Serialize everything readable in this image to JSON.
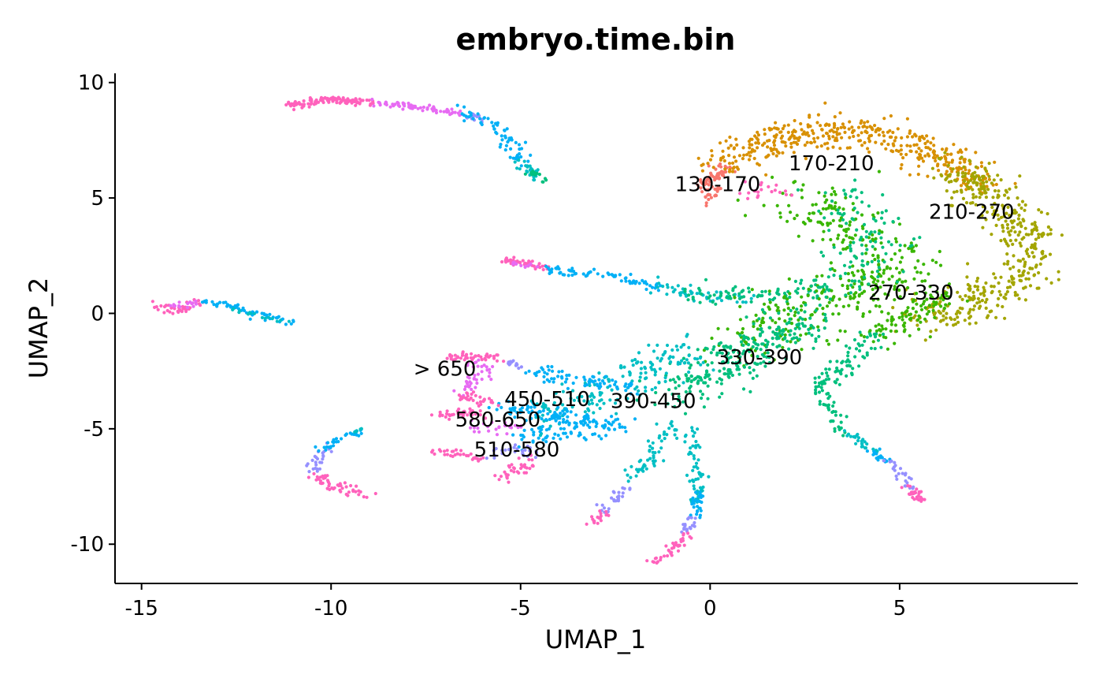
{
  "chart_data": {
    "type": "scatter",
    "title": "embryo.time.bin",
    "xlabel": "UMAP_1",
    "ylabel": "UMAP_2",
    "xlim": [
      -15.7,
      9.7
    ],
    "ylim": [
      -11.7,
      10.4
    ],
    "x_ticks": [
      -15,
      -10,
      -5,
      0,
      5
    ],
    "x_tick_labels": [
      "-15",
      "-10",
      "-5",
      "0",
      "5"
    ],
    "y_ticks": [
      -10,
      -5,
      0,
      5,
      10
    ],
    "y_tick_labels": [
      "-10",
      "-5",
      "0",
      "5",
      "10"
    ],
    "grid": false,
    "legend": "none",
    "series": [
      {
        "name": "130-170",
        "color": "#F8766D"
      },
      {
        "name": "170-210",
        "color": "#D89000"
      },
      {
        "name": "210-270",
        "color": "#A3A500"
      },
      {
        "name": "270-330",
        "color": "#39B600"
      },
      {
        "name": "330-390",
        "color": "#00BF7D"
      },
      {
        "name": "390-450",
        "color": "#00BFC4"
      },
      {
        "name": "450-510",
        "color": "#00B0F6"
      },
      {
        "name": "510-580",
        "color": "#9590FF"
      },
      {
        "name": "580-650",
        "color": "#E76BF3"
      },
      {
        "name": "> 650",
        "color": "#FF62BC"
      }
    ],
    "labels": [
      {
        "text": "130-170",
        "x": 0.2,
        "y": 5.6
      },
      {
        "text": "170-210",
        "x": 3.2,
        "y": 6.5
      },
      {
        "text": "210-270",
        "x": 6.9,
        "y": 4.4
      },
      {
        "text": "270-330",
        "x": 5.3,
        "y": 0.9
      },
      {
        "text": "330-390",
        "x": 1.3,
        "y": -1.9
      },
      {
        "text": "390-450",
        "x": -1.5,
        "y": -3.8
      },
      {
        "text": "450-510",
        "x": -4.3,
        "y": -3.7
      },
      {
        "text": "580-650",
        "x": -5.6,
        "y": -4.6
      },
      {
        "text": "510-580",
        "x": -5.1,
        "y": -5.9
      },
      {
        "text": "> 650",
        "x": -7.0,
        "y": -2.4
      }
    ],
    "structures": [
      {
        "color_index": 9,
        "pts": [
          [
            -11.2,
            9.0
          ],
          [
            -10,
            9.25
          ],
          [
            -8.8,
            9.1
          ]
        ],
        "n": 110,
        "spread": 0.08
      },
      {
        "color_index": 8,
        "pts": [
          [
            -8.8,
            9.1
          ],
          [
            -7.5,
            8.9
          ],
          [
            -6.4,
            8.6
          ]
        ],
        "n": 70,
        "spread": 0.08
      },
      {
        "color_index": 7,
        "pts": [
          [
            -6.4,
            8.6
          ],
          [
            -6.0,
            8.4
          ]
        ],
        "n": 15,
        "spread": 0.08
      },
      {
        "color_index": 6,
        "pts": [
          [
            -6.6,
            8.7
          ],
          [
            -5.7,
            8.2
          ],
          [
            -5.2,
            7.2
          ],
          [
            -4.9,
            6.5
          ]
        ],
        "n": 65,
        "spread": 0.16
      },
      {
        "color_index": 5,
        "pts": [
          [
            -5.0,
            6.6
          ],
          [
            -4.5,
            5.8
          ]
        ],
        "n": 25,
        "spread": 0.1
      },
      {
        "color_index": 4,
        "pts": [
          [
            -4.7,
            6.1
          ],
          [
            -4.4,
            5.8
          ]
        ],
        "n": 12,
        "spread": 0.08
      },
      {
        "color_index": 9,
        "pts": [
          [
            -14.6,
            0.4
          ],
          [
            -14.1,
            0.1
          ],
          [
            -13.4,
            0.45
          ]
        ],
        "n": 40,
        "spread": 0.1
      },
      {
        "color_index": 8,
        "pts": [
          [
            -14.3,
            0.2
          ],
          [
            -13.4,
            0.5
          ]
        ],
        "n": 15,
        "spread": 0.08
      },
      {
        "color_index": 6,
        "pts": [
          [
            -13.4,
            0.5
          ],
          [
            -12.6,
            0.35
          ],
          [
            -11.1,
            -0.45
          ]
        ],
        "n": 55,
        "spread": 0.08
      },
      {
        "color_index": 5,
        "pts": [
          [
            -12.6,
            0.2
          ],
          [
            -11.1,
            -0.45
          ]
        ],
        "n": 15,
        "spread": 0.06
      },
      {
        "color_index": 9,
        "pts": [
          [
            -5.5,
            2.3
          ],
          [
            -5.0,
            2.25
          ],
          [
            -4.2,
            1.9
          ]
        ],
        "n": 45,
        "spread": 0.08
      },
      {
        "color_index": 8,
        "pts": [
          [
            -5.3,
            2.2
          ],
          [
            -4.5,
            2.0
          ]
        ],
        "n": 12,
        "spread": 0.06
      },
      {
        "color_index": 6,
        "pts": [
          [
            -4.2,
            1.9
          ],
          [
            -2.5,
            1.6
          ],
          [
            -1.3,
            1.1
          ]
        ],
        "n": 70,
        "spread": 0.1
      },
      {
        "color_index": 5,
        "pts": [
          [
            -1.5,
            1.2
          ],
          [
            -0.3,
            0.8
          ],
          [
            1.0,
            0.65
          ]
        ],
        "n": 50,
        "spread": 0.14
      },
      {
        "color_index": 4,
        "pts": [
          [
            -0.5,
            0.8
          ],
          [
            0.5,
            0.7
          ],
          [
            2.0,
            0.9
          ],
          [
            3.6,
            1.2
          ]
        ],
        "n": 75,
        "spread": 0.18
      },
      {
        "color_index": 0,
        "pts": [
          [
            -0.1,
            5.0
          ],
          [
            0.05,
            5.8
          ],
          [
            0.4,
            6.3
          ]
        ],
        "n": 70,
        "spread": 0.16
      },
      {
        "color_index": 1,
        "pts": [
          [
            0.3,
            6.5
          ],
          [
            1.5,
            7.4
          ],
          [
            3.2,
            8.0
          ],
          [
            4.8,
            7.6
          ],
          [
            6.2,
            6.6
          ],
          [
            7.2,
            5.5
          ]
        ],
        "n": 420,
        "spread": 0.38
      },
      {
        "color_index": 2,
        "pts": [
          [
            6.3,
            6.2
          ],
          [
            7.6,
            4.9
          ],
          [
            8.3,
            3.5
          ],
          [
            8.5,
            2.4
          ],
          [
            8.0,
            1.3
          ],
          [
            6.8,
            0.3
          ],
          [
            5.5,
            -0.1
          ]
        ],
        "n": 430,
        "spread": 0.42
      },
      {
        "color_index": 3,
        "pts": [
          [
            2.3,
            5.2
          ],
          [
            3.8,
            3.2
          ],
          [
            5.2,
            1.7
          ],
          [
            3.6,
            0.9
          ],
          [
            2.1,
            0.0
          ],
          [
            0.8,
            -1.4
          ]
        ],
        "n": 380,
        "spread": 0.6
      },
      {
        "color_index": 3,
        "pts": [
          [
            6.3,
            0.9
          ],
          [
            5.5,
            0.0
          ],
          [
            4.4,
            -0.9
          ]
        ],
        "n": 90,
        "spread": 0.3
      },
      {
        "color_index": 4,
        "pts": [
          [
            3.2,
            5.0
          ],
          [
            4.5,
            3.5
          ],
          [
            4.0,
            2.2
          ],
          [
            2.6,
            1.0
          ]
        ],
        "n": 120,
        "spread": 0.5
      },
      {
        "color_index": 4,
        "pts": [
          [
            2.6,
            -0.2
          ],
          [
            1.3,
            -1.5
          ],
          [
            0.2,
            -2.6
          ],
          [
            -1.0,
            -3.4
          ]
        ],
        "n": 260,
        "spread": 0.45
      },
      {
        "color_index": 4,
        "pts": [
          [
            4.3,
            -0.9
          ],
          [
            3.9,
            -1.8
          ],
          [
            3.0,
            -3.0
          ]
        ],
        "n": 70,
        "spread": 0.22
      },
      {
        "color_index": 9,
        "pts": [
          [
            1.0,
            5.4
          ],
          [
            2.0,
            5.3
          ]
        ],
        "n": 20,
        "spread": 0.18
      },
      {
        "color_index": 5,
        "pts": [
          [
            -0.5,
            -1.6
          ],
          [
            -1.8,
            -2.6
          ],
          [
            -3.0,
            -3.6
          ],
          [
            -4.5,
            -4.2
          ]
        ],
        "n": 170,
        "spread": 0.42
      },
      {
        "color_index": 6,
        "pts": [
          [
            -5.0,
            -2.3
          ],
          [
            -3.5,
            -2.9
          ],
          [
            -2.0,
            -3.2
          ]
        ],
        "n": 70,
        "spread": 0.18
      },
      {
        "color_index": 6,
        "pts": [
          [
            -5.5,
            -4.1
          ],
          [
            -4.2,
            -4.4
          ],
          [
            -3.0,
            -4.6
          ]
        ],
        "n": 85,
        "spread": 0.22
      },
      {
        "color_index": 6,
        "pts": [
          [
            -5.0,
            -5.4
          ],
          [
            -3.5,
            -5.1
          ],
          [
            -2.0,
            -4.7
          ]
        ],
        "n": 80,
        "spread": 0.22
      },
      {
        "color_index": 9,
        "pts": [
          [
            -6.9,
            -1.9
          ],
          [
            -5.9,
            -1.85
          ],
          [
            -5.4,
            -2.0
          ]
        ],
        "n": 45,
        "spread": 0.08
      },
      {
        "color_index": 8,
        "pts": [
          [
            -6.5,
            -2.1
          ],
          [
            -5.9,
            -2.4
          ],
          [
            -6.3,
            -3.1
          ],
          [
            -6.6,
            -3.5
          ]
        ],
        "n": 40,
        "spread": 0.14
      },
      {
        "color_index": 9,
        "pts": [
          [
            -6.6,
            -3.5
          ],
          [
            -6.0,
            -3.8
          ],
          [
            -5.6,
            -3.9
          ]
        ],
        "n": 30,
        "spread": 0.12
      },
      {
        "color_index": 7,
        "pts": [
          [
            -5.4,
            -2.1
          ],
          [
            -5.0,
            -2.3
          ]
        ],
        "n": 12,
        "spread": 0.06
      },
      {
        "color_index": 9,
        "pts": [
          [
            -7.2,
            -4.4
          ],
          [
            -6.5,
            -4.3
          ],
          [
            -6.0,
            -4.35
          ]
        ],
        "n": 35,
        "spread": 0.1
      },
      {
        "color_index": 8,
        "pts": [
          [
            -6.5,
            -4.9
          ],
          [
            -5.6,
            -5.0
          ],
          [
            -5.1,
            -4.8
          ]
        ],
        "n": 25,
        "spread": 0.12
      },
      {
        "color_index": 9,
        "pts": [
          [
            -7.3,
            -6.0
          ],
          [
            -6.6,
            -6.1
          ],
          [
            -6.0,
            -6.3
          ]
        ],
        "n": 30,
        "spread": 0.08
      },
      {
        "color_index": 9,
        "pts": [
          [
            -5.5,
            -7.1
          ],
          [
            -5.0,
            -6.7
          ],
          [
            -4.7,
            -6.3
          ]
        ],
        "n": 35,
        "spread": 0.15
      },
      {
        "color_index": 7,
        "pts": [
          [
            -5.8,
            -6.1
          ],
          [
            -5.2,
            -5.9
          ],
          [
            -4.6,
            -6.0
          ]
        ],
        "n": 25,
        "spread": 0.14
      },
      {
        "color_index": 9,
        "pts": [
          [
            -10.4,
            -7.0
          ],
          [
            -9.7,
            -7.6
          ],
          [
            -9.1,
            -7.8
          ]
        ],
        "n": 50,
        "spread": 0.15
      },
      {
        "color_index": 7,
        "pts": [
          [
            -10.5,
            -6.8
          ],
          [
            -10.3,
            -6.2
          ],
          [
            -10.2,
            -5.8
          ]
        ],
        "n": 25,
        "spread": 0.1
      },
      {
        "color_index": 6,
        "pts": [
          [
            -10.2,
            -5.9
          ],
          [
            -9.7,
            -5.3
          ],
          [
            -9.2,
            -5.1
          ]
        ],
        "n": 30,
        "spread": 0.08
      },
      {
        "color_index": 5,
        "pts": [
          [
            -9.4,
            -5.1
          ],
          [
            -9.2,
            -5.0
          ]
        ],
        "n": 6,
        "spread": 0.04
      },
      {
        "color_index": 5,
        "pts": [
          [
            -1.0,
            -4.8
          ],
          [
            -1.5,
            -6.2
          ],
          [
            -2.2,
            -7.2
          ]
        ],
        "n": 55,
        "spread": 0.16
      },
      {
        "color_index": 7,
        "pts": [
          [
            -2.2,
            -7.4
          ],
          [
            -2.6,
            -8.2
          ],
          [
            -2.9,
            -8.6
          ]
        ],
        "n": 25,
        "spread": 0.12
      },
      {
        "color_index": 9,
        "pts": [
          [
            -2.8,
            -8.6
          ],
          [
            -3.1,
            -9.1
          ]
        ],
        "n": 18,
        "spread": 0.08
      },
      {
        "color_index": 5,
        "pts": [
          [
            -0.5,
            -5.0
          ],
          [
            -0.35,
            -7.0
          ],
          [
            -0.35,
            -8.2
          ]
        ],
        "n": 60,
        "spread": 0.1
      },
      {
        "color_index": 6,
        "pts": [
          [
            -0.3,
            -7.8
          ],
          [
            -0.4,
            -8.8
          ]
        ],
        "n": 25,
        "spread": 0.08
      },
      {
        "color_index": 7,
        "pts": [
          [
            -0.5,
            -8.8
          ],
          [
            -0.6,
            -9.5
          ]
        ],
        "n": 20,
        "spread": 0.08
      },
      {
        "color_index": 9,
        "pts": [
          [
            -0.6,
            -9.6
          ],
          [
            -1.1,
            -10.4
          ],
          [
            -1.5,
            -10.8
          ]
        ],
        "n": 40,
        "spread": 0.08
      },
      {
        "color_index": 4,
        "pts": [
          [
            2.8,
            -3.0
          ],
          [
            3.2,
            -4.2
          ],
          [
            3.6,
            -5.2
          ]
        ],
        "n": 45,
        "spread": 0.14
      },
      {
        "color_index": 5,
        "pts": [
          [
            3.6,
            -5.2
          ],
          [
            4.3,
            -5.9
          ]
        ],
        "n": 25,
        "spread": 0.1
      },
      {
        "color_index": 6,
        "pts": [
          [
            4.2,
            -5.9
          ],
          [
            4.7,
            -6.4
          ]
        ],
        "n": 20,
        "spread": 0.08
      },
      {
        "color_index": 7,
        "pts": [
          [
            4.7,
            -6.3
          ],
          [
            5.1,
            -7.1
          ],
          [
            5.3,
            -7.6
          ]
        ],
        "n": 25,
        "spread": 0.1
      },
      {
        "color_index": 9,
        "pts": [
          [
            5.2,
            -7.6
          ],
          [
            5.5,
            -8.0
          ],
          [
            5.6,
            -8.2
          ]
        ],
        "n": 30,
        "spread": 0.1
      }
    ]
  }
}
